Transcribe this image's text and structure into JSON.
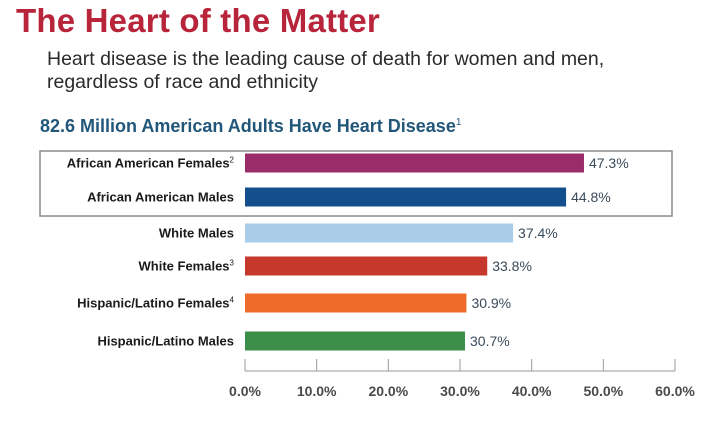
{
  "title": "The Heart of the Matter",
  "subtitle": "Heart disease is the leading cause of death for women and men, regardless of race and ethnicity",
  "chart_title": "82.6 Million American Adults Have Heart Disease",
  "chart_title_footnote": "1",
  "chart_data": {
    "type": "bar",
    "orientation": "horizontal",
    "categories": [
      "African American Females",
      "African American Males",
      "White Males",
      "White Females",
      "Hispanic/Latino Females",
      "Hispanic/Latino Males"
    ],
    "footnotes": [
      "2",
      "",
      "",
      "3",
      "4",
      ""
    ],
    "values": [
      47.3,
      44.8,
      37.4,
      33.8,
      30.9,
      30.7
    ],
    "value_labels": [
      "47.3%",
      "44.8%",
      "37.4%",
      "33.8%",
      "30.9%",
      "30.7%"
    ],
    "colors": [
      "#9b2c6a",
      "#134f8c",
      "#a9cde9",
      "#c6382b",
      "#ef6b2a",
      "#3b8f48"
    ],
    "xlim": [
      0,
      60
    ],
    "ticks": [
      0,
      10,
      20,
      30,
      40,
      50,
      60
    ],
    "tick_labels": [
      "0.0%",
      "10.0%",
      "20.0%",
      "30.0%",
      "40.0%",
      "50.0%",
      "60.0%"
    ],
    "highlight": "African American Females and African American Males",
    "xlabel": "",
    "ylabel": ""
  }
}
